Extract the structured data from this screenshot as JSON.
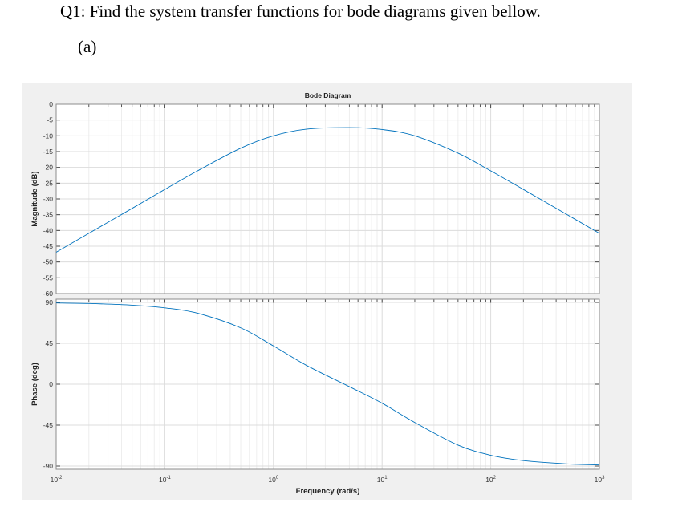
{
  "document": {
    "question": "Q1: Find the system transfer functions for bode diagrams given bellow.",
    "part": "(a)"
  },
  "chart_data": [
    {
      "type": "line",
      "title": "Bode Diagram",
      "xlabel": "Frequency  (rad/s)",
      "ylabel": "Magnitude (dB)",
      "xscale": "log",
      "xlim": [
        0.01,
        1000
      ],
      "ylim": [
        -60,
        0
      ],
      "xticks": [
        0.01,
        0.1,
        1,
        10,
        100,
        1000
      ],
      "xtick_labels": [
        [
          "10",
          "-2"
        ],
        [
          "10",
          "-1"
        ],
        [
          "10",
          "0"
        ],
        [
          "10",
          "1"
        ],
        [
          "10",
          "2"
        ],
        [
          "10",
          "3"
        ]
      ],
      "yticks": [
        0,
        -5,
        -10,
        -15,
        -20,
        -25,
        -30,
        -35,
        -40,
        -45,
        -50,
        -55,
        -60
      ],
      "ytick_labels": [
        "0",
        "-5",
        "-10",
        "-15",
        "-20",
        "-25",
        "-30",
        "-35",
        "-40",
        "-45",
        "-50",
        "-55",
        "-60"
      ],
      "grid": true,
      "color": "#0072bd",
      "x": [
        0.01,
        0.02,
        0.05,
        0.1,
        0.2,
        0.5,
        1,
        2,
        5,
        10,
        20,
        50,
        100,
        200,
        500,
        1000
      ],
      "y": [
        -46.9,
        -40.9,
        -33.0,
        -27.0,
        -21.1,
        -13.9,
        -10.0,
        -7.9,
        -7.4,
        -8.0,
        -10.0,
        -15.5,
        -21.1,
        -27.0,
        -34.9,
        -40.9
      ]
    },
    {
      "type": "line",
      "xlabel": "Frequency  (rad/s)",
      "ylabel": "Phase (deg)",
      "xscale": "log",
      "xlim": [
        0.01,
        1000
      ],
      "ylim": [
        -90,
        90
      ],
      "yticks": [
        90,
        45,
        0,
        -45,
        -90
      ],
      "ytick_labels": [
        "90",
        "45",
        "0",
        "-45",
        "-90"
      ],
      "grid": true,
      "color": "#0072bd",
      "x": [
        0.01,
        0.02,
        0.05,
        0.1,
        0.2,
        0.5,
        1,
        2,
        5,
        10,
        20,
        50,
        100,
        200,
        500,
        1000
      ],
      "y": [
        89.4,
        88.8,
        87.0,
        84.0,
        78.1,
        62.0,
        42.1,
        20.9,
        -2.7,
        -20.9,
        -42.1,
        -67.0,
        -78.1,
        -84.0,
        -87.6,
        -88.8
      ]
    }
  ]
}
